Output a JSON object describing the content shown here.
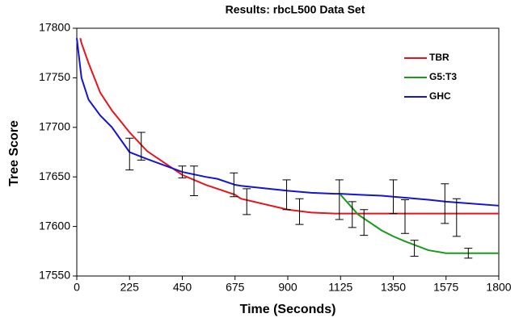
{
  "chart_data": {
    "type": "line",
    "title": "Results: rbcL500 Data Set",
    "x_label": "Time (Seconds)",
    "y_label": "Tree Score",
    "x": [
      0,
      15,
      20,
      50,
      100,
      150,
      225,
      300,
      450,
      550,
      600,
      675,
      700,
      900,
      1000,
      1100,
      1125,
      1200,
      1300,
      1350,
      1400,
      1500,
      1575,
      1800
    ],
    "series": [
      {
        "name": "TBR",
        "color": "#e8141c",
        "values": [
          null,
          17790,
          17785,
          17765,
          17735,
          17717,
          17695,
          17676,
          17652,
          17642,
          17638,
          17632,
          17628,
          17617,
          17614,
          17613,
          17613,
          17613,
          17613,
          17613,
          17613,
          17613,
          17613,
          17613
        ]
      },
      {
        "name": "G5:T3",
        "color": "#1a9a1a",
        "values": [
          null,
          null,
          null,
          null,
          null,
          null,
          null,
          null,
          null,
          null,
          null,
          null,
          null,
          null,
          null,
          null,
          17632,
          17612,
          17596,
          17590,
          17585,
          17576,
          17573,
          17573
        ]
      },
      {
        "name": "GHC",
        "color": "#1414d2",
        "values": [
          17790,
          17760,
          17750,
          17728,
          17712,
          17700,
          17675,
          17668,
          17655,
          17650,
          17648,
          17642,
          17641,
          17636,
          17634,
          17633,
          17633,
          17632,
          17631,
          17630,
          17629,
          17627,
          17625,
          17621
        ]
      }
    ],
    "error_bars": {
      "x": [
        225,
        275,
        450,
        500,
        670,
        725,
        895,
        950,
        1120,
        1175,
        1225,
        1350,
        1400,
        1440,
        1570,
        1620,
        1670
      ],
      "values": [
        17673,
        17681,
        17655,
        17646,
        17642,
        17625,
        17632,
        17615,
        17627,
        17612,
        17604,
        17630,
        17610,
        17578,
        17623,
        17609,
        17573
      ],
      "errors": [
        16,
        14,
        6,
        15,
        12,
        13,
        15,
        13,
        20,
        13,
        13,
        17,
        17,
        8,
        20,
        19,
        5
      ]
    },
    "xlim": [
      0,
      1800
    ],
    "xticks": [
      0,
      225,
      450,
      675,
      900,
      1125,
      1350,
      1575,
      1800
    ],
    "ylim": [
      17550,
      17800
    ],
    "yticks": [
      17550,
      17600,
      17650,
      17700,
      17750,
      17800
    ]
  }
}
